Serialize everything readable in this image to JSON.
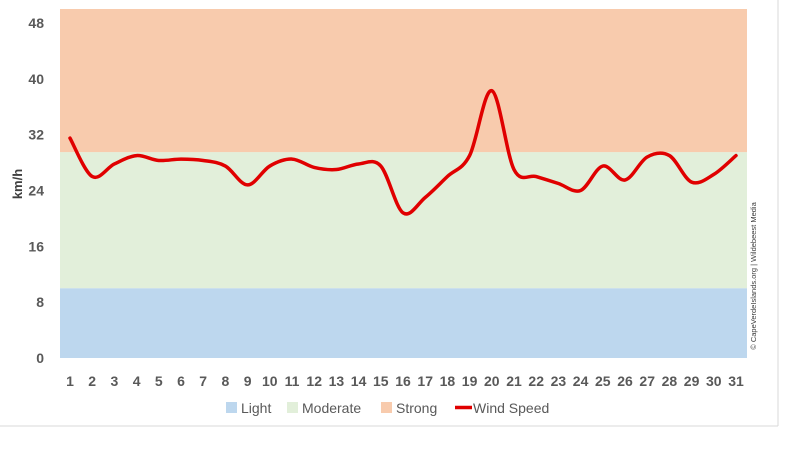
{
  "chart_data": {
    "type": "line",
    "title": "",
    "xlabel": "",
    "ylabel": "km/h",
    "ylim": [
      0,
      50
    ],
    "y_ticks": [
      "0",
      "8",
      "16",
      "24",
      "32",
      "40",
      "48"
    ],
    "x": [
      "1",
      "2",
      "3",
      "4",
      "5",
      "6",
      "7",
      "8",
      "9",
      "10",
      "11",
      "12",
      "13",
      "14",
      "15",
      "16",
      "17",
      "18",
      "19",
      "20",
      "21",
      "22",
      "23",
      "24",
      "25",
      "26",
      "27",
      "28",
      "29",
      "30",
      "31"
    ],
    "bands": [
      {
        "name": "Light",
        "from": 0,
        "to": 10,
        "color": "#bdd7ee"
      },
      {
        "name": "Moderate",
        "from": 10,
        "to": 29.5,
        "color": "#e2efda"
      },
      {
        "name": "Strong",
        "from": 29.5,
        "to": 50,
        "color": "#f8cbad"
      }
    ],
    "series": [
      {
        "name": "Wind Speed",
        "color": "#e00000",
        "values": [
          31.5,
          26.0,
          27.8,
          29.0,
          28.3,
          28.5,
          28.3,
          27.5,
          24.8,
          27.5,
          28.5,
          27.3,
          27.0,
          27.8,
          27.5,
          20.8,
          23.0,
          26.0,
          29.0,
          38.3,
          27.0,
          26.0,
          25.0,
          24.0,
          27.5,
          25.5,
          28.8,
          29.0,
          25.2,
          26.3,
          29.0
        ]
      }
    ],
    "legend": {
      "position": "bottom",
      "entries": [
        "Light",
        "Moderate",
        "Strong",
        "Wind Speed"
      ]
    },
    "grid": false
  },
  "credit": "© CapeVerdeIslands.org | Wildebeest Media"
}
